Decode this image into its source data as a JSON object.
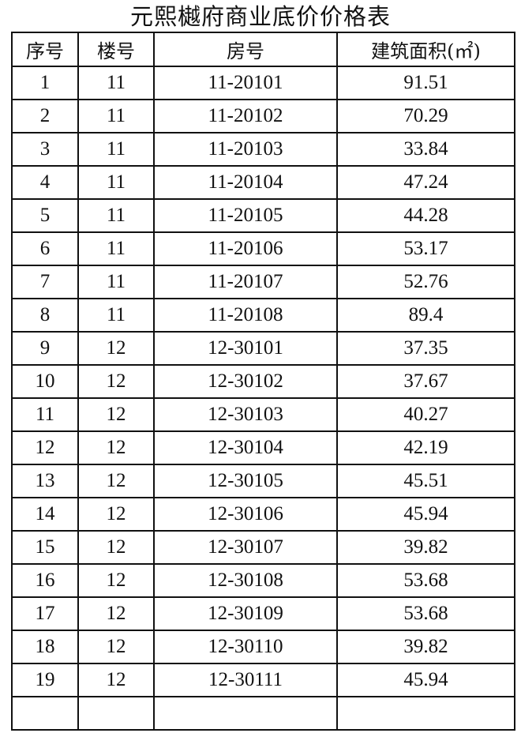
{
  "title": "元熙樾府商业底价价格表",
  "table": {
    "headers": [
      "序号",
      "楼号",
      "房号",
      "建筑面积(㎡)"
    ],
    "rows": [
      [
        "1",
        "11",
        "11-20101",
        "91.51"
      ],
      [
        "2",
        "11",
        "11-20102",
        "70.29"
      ],
      [
        "3",
        "11",
        "11-20103",
        "33.84"
      ],
      [
        "4",
        "11",
        "11-20104",
        "47.24"
      ],
      [
        "5",
        "11",
        "11-20105",
        "44.28"
      ],
      [
        "6",
        "11",
        "11-20106",
        "53.17"
      ],
      [
        "7",
        "11",
        "11-20107",
        "52.76"
      ],
      [
        "8",
        "11",
        "11-20108",
        "89.4"
      ],
      [
        "9",
        "12",
        "12-30101",
        "37.35"
      ],
      [
        "10",
        "12",
        "12-30102",
        "37.67"
      ],
      [
        "11",
        "12",
        "12-30103",
        "40.27"
      ],
      [
        "12",
        "12",
        "12-30104",
        "42.19"
      ],
      [
        "13",
        "12",
        "12-30105",
        "45.51"
      ],
      [
        "14",
        "12",
        "12-30106",
        "45.94"
      ],
      [
        "15",
        "12",
        "12-30107",
        "39.82"
      ],
      [
        "16",
        "12",
        "12-30108",
        "53.68"
      ],
      [
        "17",
        "12",
        "12-30109",
        "53.68"
      ],
      [
        "18",
        "12",
        "12-30110",
        "39.82"
      ],
      [
        "19",
        "12",
        "12-30111",
        "45.94"
      ]
    ]
  }
}
